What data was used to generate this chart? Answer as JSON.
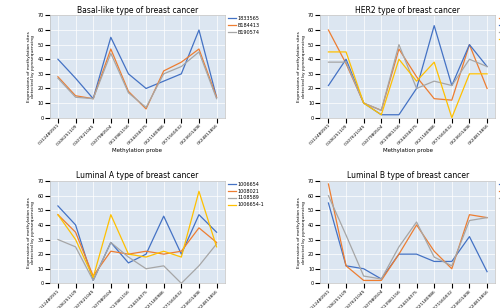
{
  "x_labels": [
    "CG12480931",
    "CG06251109",
    "CG07621045",
    "CG07980504",
    "CK13981156",
    "CK34434075",
    "CK21180986",
    "CK71560032",
    "CK23601408",
    "CK24813856"
  ],
  "basal_like": {
    "title": "Basal-like type of breast cancer",
    "series": {
      "1833565": [
        40,
        27,
        13,
        55,
        30,
        20,
        25,
        30,
        60,
        14
      ],
      "B184413": [
        28,
        15,
        13,
        47,
        18,
        6,
        32,
        38,
        47,
        14
      ],
      "B190574": [
        27,
        14,
        13,
        44,
        17,
        7,
        30,
        35,
        45,
        13
      ]
    },
    "colors": {
      "1833565": "#4472c4",
      "B184413": "#ed7d31",
      "B190574": "#a6a6a6"
    }
  },
  "her2": {
    "title": "HER2 type of breast cancer",
    "series": {
      "1327135": [
        60,
        37,
        10,
        5,
        47,
        28,
        13,
        12,
        50,
        20
      ],
      "1322677": [
        22,
        40,
        10,
        2,
        2,
        20,
        63,
        22,
        50,
        35
      ],
      "1343223": [
        38,
        38,
        10,
        5,
        50,
        20,
        25,
        22,
        40,
        35
      ],
      "1322677L": [
        45,
        45,
        10,
        2,
        40,
        25,
        38,
        0,
        30,
        30
      ]
    },
    "colors": {
      "1327135": "#ed7d31",
      "1322677": "#4472c4",
      "1343223": "#a6a6a6",
      "1322677L": "#ffc000"
    }
  },
  "luminal_a": {
    "title": "Luminal A type of breast cancer",
    "series": {
      "1006654": [
        53,
        40,
        2,
        28,
        14,
        20,
        46,
        20,
        47,
        35
      ],
      "1008021": [
        47,
        35,
        5,
        22,
        20,
        22,
        20,
        22,
        38,
        28
      ],
      "1108589": [
        30,
        25,
        2,
        28,
        18,
        10,
        12,
        0,
        12,
        27
      ],
      "1006654-1": [
        47,
        30,
        4,
        47,
        20,
        18,
        22,
        18,
        63,
        25
      ]
    },
    "colors": {
      "1006654": "#4472c4",
      "1008021": "#ed7d31",
      "1108589": "#a6a6a6",
      "1006654-1": "#ffc000"
    }
  },
  "luminal_b": {
    "title": "Luminal B type of breast cancer",
    "series": {
      "1329662": [
        55,
        12,
        10,
        3,
        20,
        20,
        15,
        15,
        32,
        8
      ],
      "1319427": [
        68,
        12,
        2,
        2,
        20,
        40,
        22,
        10,
        47,
        45
      ],
      "1310451": [
        60,
        33,
        5,
        3,
        25,
        42,
        18,
        12,
        43,
        45
      ]
    },
    "colors": {
      "1329662": "#4472c4",
      "1319427": "#ed7d31",
      "1310451": "#a6a6a6"
    }
  },
  "ylabel": "Expressions of methylation sites\ndetected by pyrosequencing",
  "xlabel": "Methylation probe",
  "ylim": [
    0,
    70
  ],
  "yticks": [
    0,
    10,
    20,
    30,
    40,
    50,
    60,
    70
  ],
  "bg_color": "#dce6f1",
  "fig_bg": "#ffffff",
  "border_color": "#c0c0c0"
}
